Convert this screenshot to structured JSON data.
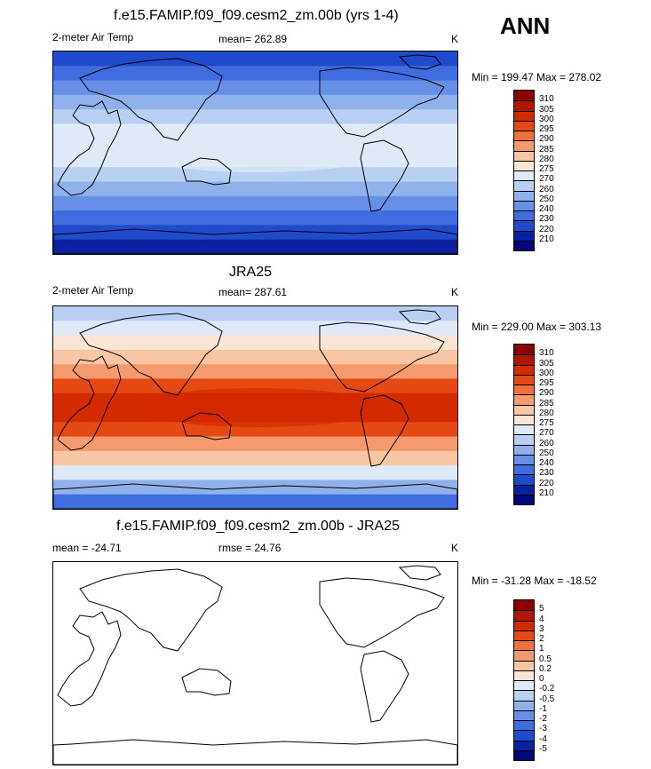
{
  "season": "ANN",
  "panels": [
    {
      "title": "f.e15.FAMIP.f09_f09.cesm2_zm.00b (yrs 1-4)",
      "left_label": "2-meter Air Temp",
      "center_label": "mean= 262.89",
      "right_label": "K",
      "minmax": "Min = 199.47 Max = 278.02",
      "colorbar_labels": [
        "310",
        "305",
        "300",
        "295",
        "290",
        "285",
        "280",
        "275",
        "270",
        "260",
        "250",
        "240",
        "230",
        "220",
        "210"
      ]
    },
    {
      "title": "JRA25",
      "left_label": "2-meter Air Temp",
      "center_label": "mean= 287.61",
      "right_label": "K",
      "minmax": "Min = 229.00 Max = 303.13",
      "colorbar_labels": [
        "310",
        "305",
        "300",
        "295",
        "290",
        "285",
        "280",
        "275",
        "270",
        "260",
        "250",
        "240",
        "230",
        "220",
        "210"
      ]
    },
    {
      "title": "f.e15.FAMIP.f09_f09.cesm2_zm.00b - JRA25",
      "left_label": "mean = -24.71",
      "center_label": "rmse =  24.76",
      "right_label": "K",
      "minmax": "Min = -31.28 Max = -18.52",
      "colorbar_labels": [
        "5",
        "4",
        "3",
        "2",
        "1",
        "0.5",
        "0.2",
        "0",
        "-0.2",
        "-0.5",
        "-1",
        "-2",
        "-3",
        "-4",
        "-5"
      ]
    }
  ],
  "palette": [
    "#8b0000",
    "#b31600",
    "#d42a00",
    "#e64a14",
    "#f0703c",
    "#f59a6e",
    "#f9c6a4",
    "#fbe6d6",
    "#dfe9f7",
    "#b9cff2",
    "#8fb2ec",
    "#6690e6",
    "#3f6de0",
    "#1f4acc",
    "#0a22a0",
    "#00087a"
  ],
  "land_color": "#ffffff"
}
